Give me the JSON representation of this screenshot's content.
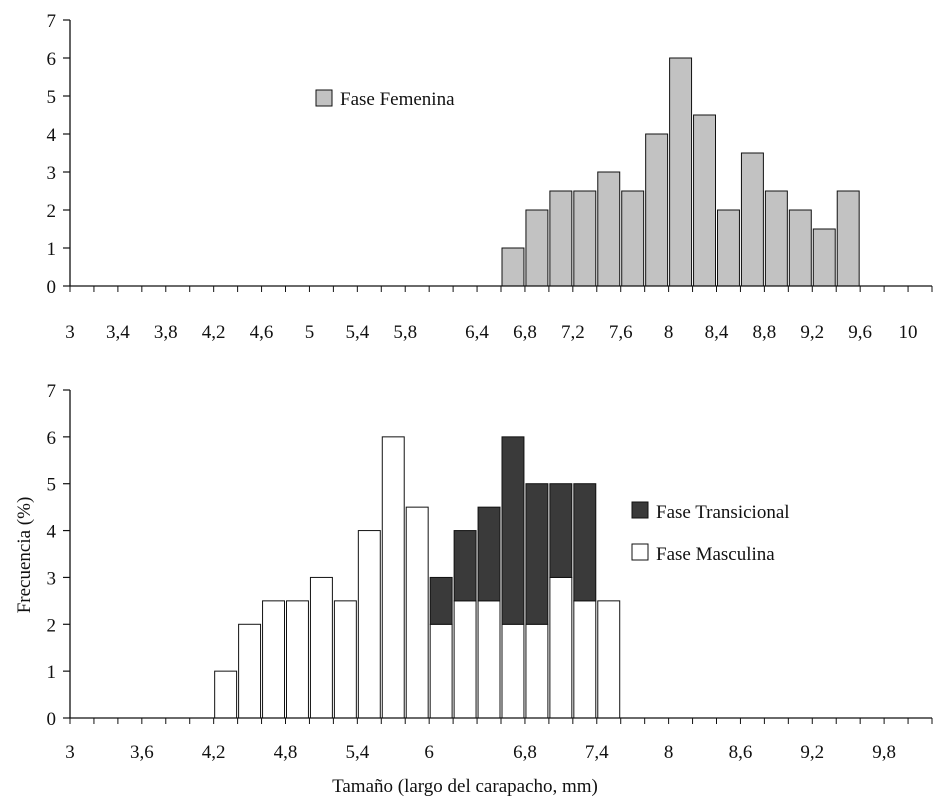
{
  "chart_data": [
    {
      "type": "bar",
      "panel": "top",
      "bin_width": 0.2,
      "x": [
        6.7,
        6.9,
        7.1,
        7.3,
        7.5,
        7.7,
        7.9,
        8.1,
        8.3,
        8.5,
        8.7,
        8.9,
        9.1,
        9.3,
        9.5
      ],
      "series": [
        {
          "name": "Fase Femenina",
          "values": [
            1,
            2,
            2.5,
            2.5,
            3,
            2.5,
            4,
            6,
            4.5,
            2,
            3.5,
            2.5,
            2,
            1.5,
            2.5
          ],
          "color": "#c2c2c2"
        }
      ],
      "xticks": [
        "3",
        "3,4",
        "3,8",
        "4,2",
        "4,6",
        "5",
        "5,4",
        "5,8",
        "6,4",
        "6,8",
        "7,2",
        "7,6",
        "8",
        "8,4",
        "8,8",
        "9,2",
        "9,6",
        "10"
      ],
      "xlim": [
        3,
        10.2
      ],
      "ylim": [
        0,
        7
      ],
      "yticks": [
        "0",
        "1",
        "2",
        "3",
        "4",
        "5",
        "6",
        "7"
      ],
      "legend": "upper-left",
      "xlabel": "",
      "ylabel": ""
    },
    {
      "type": "bar",
      "stacked": true,
      "panel": "bottom",
      "bin_width": 0.2,
      "x": [
        4.3,
        4.5,
        4.7,
        4.9,
        5.1,
        5.3,
        5.5,
        5.7,
        5.9,
        6.1,
        6.3,
        6.5,
        6.7,
        6.9,
        7.1,
        7.3,
        7.5
      ],
      "series": [
        {
          "name": "Fase Masculina",
          "values": [
            1,
            2,
            2.5,
            2.5,
            3,
            2.5,
            4,
            6,
            4.5,
            2,
            2.5,
            2.5,
            2,
            2,
            3,
            2.5,
            2.5
          ],
          "color": "#ffffff"
        },
        {
          "name": "Fase Transicional",
          "values": [
            0,
            0,
            0,
            0,
            0,
            0,
            0,
            0,
            0,
            1,
            1.5,
            2,
            4,
            3,
            2,
            2.5,
            0
          ],
          "color": "#3a3a3a"
        }
      ],
      "xticks": [
        "3",
        "3,6",
        "4,2",
        "4,8",
        "5,4",
        "6",
        "6,8",
        "7,4",
        "8",
        "8,6",
        "9,2",
        "9,8"
      ],
      "xlim": [
        3,
        10.2
      ],
      "ylim": [
        0,
        7
      ],
      "yticks": [
        "0",
        "1",
        "2",
        "3",
        "4",
        "5",
        "6",
        "7"
      ],
      "legend": "right",
      "xlabel": "Tamaño (largo del carapacho, mm)",
      "ylabel": "Frecuencia (%)"
    }
  ]
}
